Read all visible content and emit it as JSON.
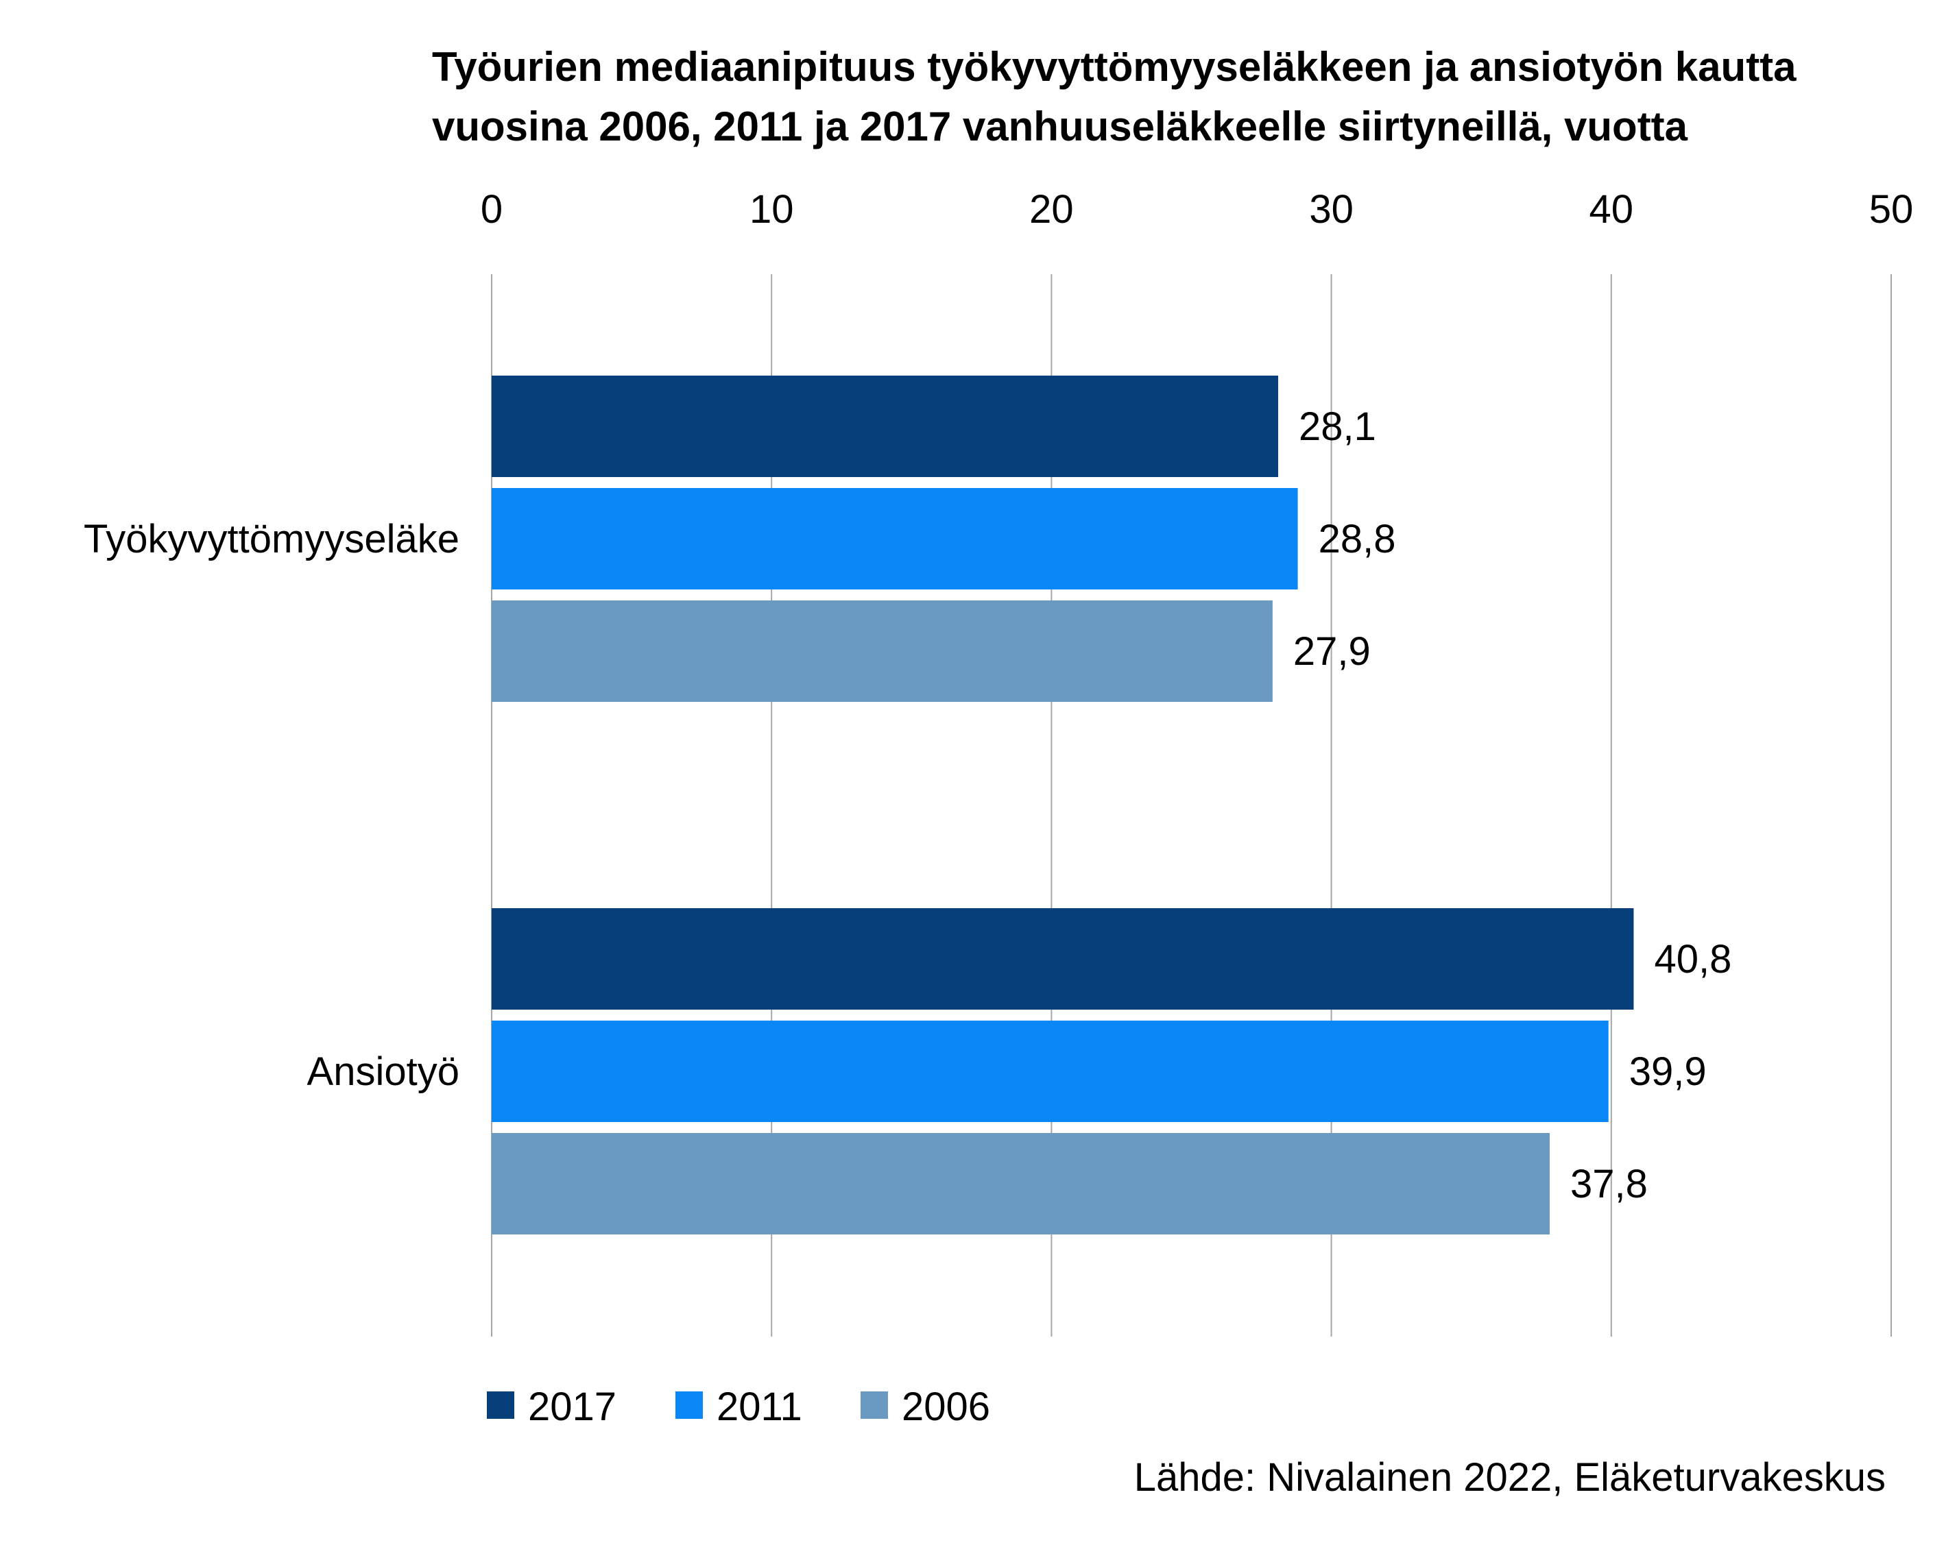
{
  "chart_data": {
    "type": "bar",
    "orientation": "horizontal",
    "title_lines": [
      "Työurien mediaanipituus työkyvyttömyyseläkkeen ja ansiotyön kautta",
      "vuosina 2006, 2011 ja 2017 vanhuuseläkkeelle siirtyneillä, vuotta"
    ],
    "categories": [
      "Työkyvyttömyyseläke",
      "Ansiotyö"
    ],
    "series": [
      {
        "name": "2017",
        "color": "#073f7a",
        "values": [
          28.1,
          40.8
        ],
        "labels": [
          "28,1",
          "40,8"
        ]
      },
      {
        "name": "2011",
        "color": "#0a87f7",
        "values": [
          28.8,
          39.9
        ],
        "labels": [
          "28,8",
          "39,9"
        ]
      },
      {
        "name": "2006",
        "color": "#6a99c2",
        "values": [
          27.9,
          37.8
        ],
        "labels": [
          "27,9",
          "37,8"
        ]
      }
    ],
    "xlim": [
      0,
      50
    ],
    "xticks": [
      "0",
      "10",
      "20",
      "30",
      "40",
      "50"
    ],
    "x_axis_position": "top",
    "grid": true,
    "legend_position": "bottom-left",
    "source": "Lähde: Nivalainen 2022, Eläketurvakeskus"
  }
}
